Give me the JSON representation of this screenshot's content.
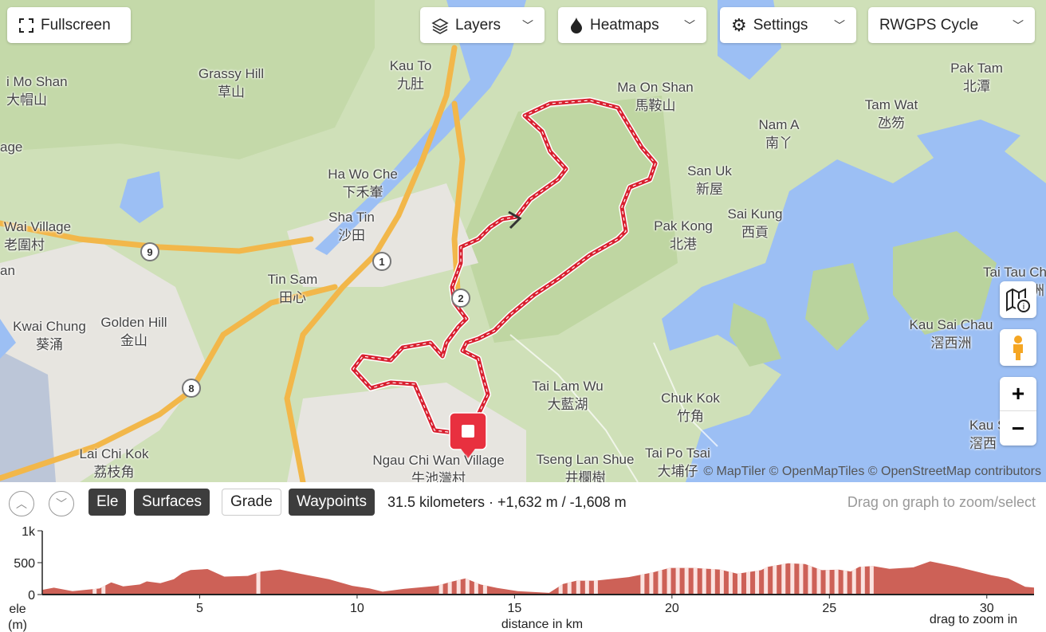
{
  "controls": {
    "fullscreen": "Fullscreen",
    "layers": "Layers",
    "heatmaps": "Heatmaps",
    "settings": "Settings",
    "map_style": "RWGPS Cycle"
  },
  "attribution": "© MapTiler © OpenMapTiles © OpenStreetMap contributors",
  "map_labels": [
    {
      "en": "i Mo Shan",
      "zh": "大帽山"
    },
    {
      "en": "Grassy Hill",
      "zh": "草山"
    },
    {
      "en": "Kau To",
      "zh": "九肚"
    },
    {
      "en": "Ma On Shan",
      "zh": "馬鞍山"
    },
    {
      "en": "Pak Tam",
      "zh": "北潭"
    },
    {
      "en": "Tam Wat",
      "zh": "氹笏"
    },
    {
      "en": "Nam A",
      "zh": "南丫"
    },
    {
      "en": "age",
      "zh": ""
    },
    {
      "en": "Ha Wo Che",
      "zh": "下禾輋"
    },
    {
      "en": "San Uk",
      "zh": "新屋"
    },
    {
      "en": "Sha Tin",
      "zh": "沙田"
    },
    {
      "en": "Sai Kung",
      "zh": "西貢"
    },
    {
      "en": "Pak Kong",
      "zh": "北港"
    },
    {
      "en": "Wai Village",
      "zh": "老圍村"
    },
    {
      "en": "Tin Sam",
      "zh": "田心"
    },
    {
      "en": "Tai Tau Ch",
      "zh": "洲"
    },
    {
      "en": "Golden Hill",
      "zh": "金山"
    },
    {
      "en": "Kwai Chung",
      "zh": "葵涌"
    },
    {
      "en": "Kau Sai Chau",
      "zh": "滘西洲"
    },
    {
      "en": "Tai Lam Wu",
      "zh": "大藍湖"
    },
    {
      "en": "Chuk Kok",
      "zh": "竹角"
    },
    {
      "en": "Lai Chi Kok",
      "zh": "荔枝角"
    },
    {
      "en": "Tai Po Tsai",
      "zh": "大埔仔"
    },
    {
      "en": "Tseng Lan Shue",
      "zh": "井欄樹"
    },
    {
      "en": "Ngau Chi Wan Village",
      "zh": "牛池灣村"
    },
    {
      "en": "Kau S",
      "zh": "滘西"
    },
    {
      "en": "an",
      "zh": ""
    }
  ],
  "route_shields": [
    "9",
    "1",
    "2",
    "8"
  ],
  "colors": {
    "route": "#d8202f",
    "water": "#9cbff4",
    "elevation_fill": "#cd6157",
    "surface_stripe": "#fbe3e0"
  },
  "icons": {
    "layers": "layers-icon",
    "heatmaps": "flame-icon",
    "settings": "gear-icon",
    "map_info": "map-info-icon",
    "street_view": "pegman-icon",
    "zoom_in": "plus-icon",
    "zoom_out": "minus-icon"
  },
  "panel": {
    "tabs": [
      {
        "label": "Ele",
        "active": true
      },
      {
        "label": "Surfaces",
        "active": true
      },
      {
        "label": "Grade",
        "active": false
      },
      {
        "label": "Waypoints",
        "active": true
      }
    ],
    "stats": "31.5 kilometers · +1,632 m / -1,608 m",
    "hint": "Drag on graph to zoom/select",
    "drag_hint": "drag to zoom in"
  },
  "chart_data": {
    "type": "area",
    "xlabel": "distance in km",
    "ylabel": "ele (m)",
    "ylabel_lines": [
      "ele",
      "(m)"
    ],
    "xlim": [
      0,
      31.5
    ],
    "ylim": [
      0,
      1000
    ],
    "xticks": [
      5,
      10,
      15,
      20,
      25,
      30
    ],
    "yticks": [
      {
        "v": 0,
        "label": "0"
      },
      {
        "v": 500,
        "label": "500"
      },
      {
        "v": 1000,
        "label": "1k"
      }
    ],
    "x": [
      0,
      0.37,
      0.96,
      1.82,
      2.19,
      2.57,
      3.1,
      3.32,
      3.75,
      4.18,
      4.44,
      4.71,
      5.25,
      5.78,
      6.53,
      6.96,
      7.55,
      8.24,
      9.1,
      9.85,
      10.4,
      10.81,
      11.46,
      12.53,
      12.96,
      13.44,
      13.92,
      14.45,
      15.1,
      16.1,
      16.54,
      16.97,
      17.56,
      18.63,
      19.39,
      19.92,
      20.68,
      21.54,
      22.08,
      22.83,
      23.04,
      23.69,
      24.23,
      24.76,
      25.3,
      25.68,
      25.95,
      26.38,
      26.91,
      27.67,
      28.2,
      29.06,
      30.14,
      30.68,
      31.22,
      31.5
    ],
    "y": [
      74,
      107,
      54,
      95,
      190,
      128,
      157,
      206,
      178,
      240,
      335,
      384,
      400,
      281,
      293,
      363,
      392,
      322,
      240,
      136,
      95,
      45,
      87,
      136,
      198,
      252,
      157,
      103,
      54,
      26,
      165,
      217,
      217,
      274,
      348,
      418,
      418,
      391,
      326,
      383,
      435,
      491,
      478,
      383,
      391,
      361,
      435,
      448,
      404,
      426,
      520,
      435,
      304,
      252,
      122,
      109
    ],
    "surface_stripe_ranges_km": [
      [
        1.6,
        1.9
      ],
      [
        6.8,
        7.0
      ],
      [
        12.6,
        14.2
      ],
      [
        16.4,
        17.6
      ],
      [
        19.0,
        26.5
      ]
    ],
    "grid": false
  }
}
